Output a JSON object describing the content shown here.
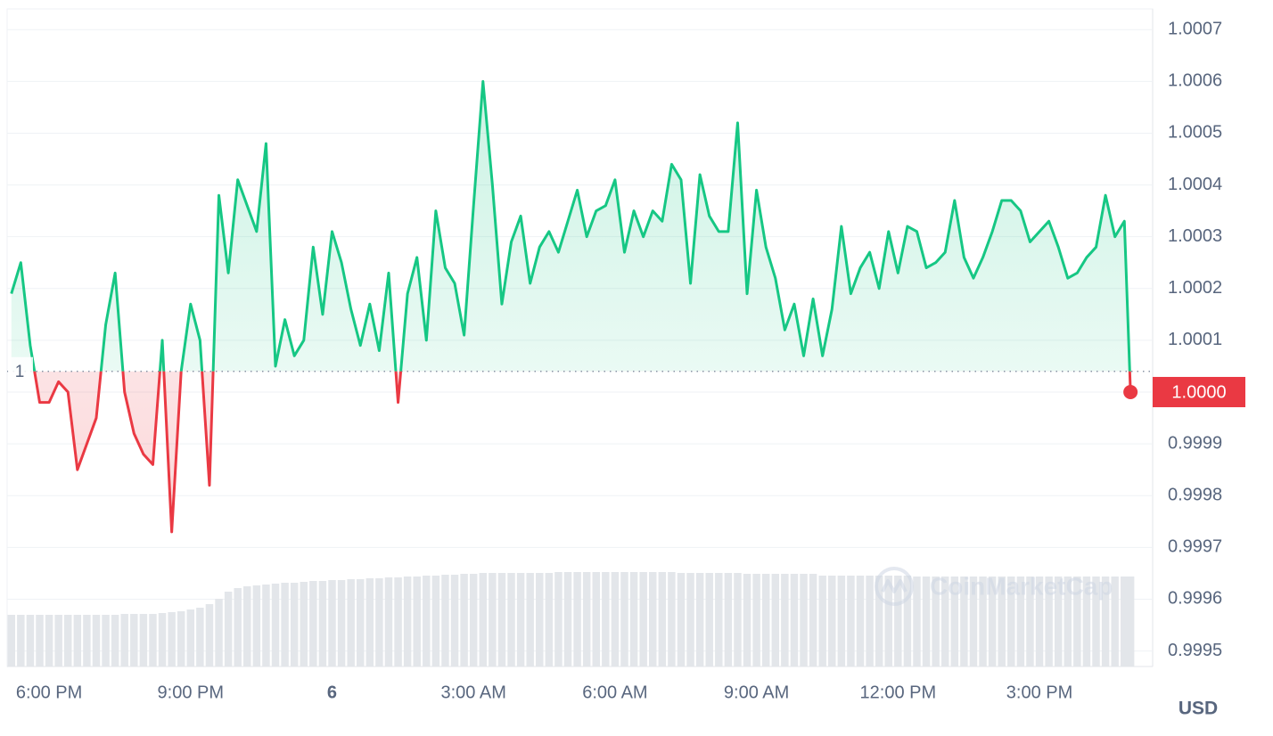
{
  "chart_data": {
    "type": "line",
    "x": [
      17.2,
      17.4,
      17.6,
      17.8,
      18,
      18.2,
      18.4,
      18.6,
      18.8,
      19,
      19.2,
      19.4,
      19.6,
      19.8,
      20,
      20.2,
      20.4,
      20.6,
      20.8,
      21,
      21.2,
      21.4,
      21.6,
      21.8,
      22,
      22.2,
      22.4,
      22.6,
      22.8,
      23,
      23.2,
      23.4,
      23.6,
      23.8,
      24,
      24.2,
      24.4,
      24.6,
      24.8,
      25,
      25.2,
      25.4,
      25.6,
      25.8,
      26,
      26.2,
      26.4,
      26.6,
      26.8,
      27,
      27.2,
      27.4,
      27.6,
      27.8,
      28,
      28.2,
      28.4,
      28.6,
      28.8,
      29,
      29.2,
      29.4,
      29.6,
      29.8,
      30,
      30.2,
      30.4,
      30.6,
      30.8,
      31,
      31.2,
      31.4,
      31.6,
      31.8,
      32,
      32.2,
      32.4,
      32.6,
      32.8,
      33,
      33.2,
      33.4,
      33.6,
      33.8,
      34,
      34.2,
      34.4,
      34.6,
      34.8,
      35,
      35.2,
      35.4,
      35.6,
      35.8,
      36,
      36.2,
      36.4,
      36.6,
      36.8,
      37,
      37.2,
      37.4,
      37.6,
      37.8,
      38,
      38.2,
      38.4,
      38.6,
      38.8,
      39,
      39.2,
      39.4,
      39.6,
      39.8,
      40,
      40.2,
      40.4,
      40.6,
      40.8,
      40.93
    ],
    "series": [
      {
        "up_color": "#16c784",
        "down_color": "#ea3943",
        "values": [
          1.00019,
          1.00025,
          1.00009,
          0.99998,
          0.99998,
          1.00002,
          1,
          0.99985,
          0.9999,
          0.99995,
          1.00013,
          1.00023,
          1,
          0.99992,
          0.99988,
          0.99986,
          1.0001,
          0.99973,
          1.00004,
          1.00017,
          1.0001,
          0.99982,
          1.00038,
          1.00023,
          1.00041,
          1.00036,
          1.00031,
          1.00048,
          1.00005,
          1.00014,
          1.00007,
          1.0001,
          1.00028,
          1.00015,
          1.00031,
          1.00025,
          1.00016,
          1.00009,
          1.00017,
          1.00008,
          1.00023,
          0.99998,
          1.00019,
          1.00026,
          1.0001,
          1.00035,
          1.00024,
          1.00021,
          1.00011,
          1.00036,
          1.0006,
          1.0004,
          1.00017,
          1.00029,
          1.00034,
          1.00021,
          1.00028,
          1.00031,
          1.00027,
          1.00033,
          1.00039,
          1.0003,
          1.00035,
          1.00036,
          1.00041,
          1.00027,
          1.00035,
          1.0003,
          1.00035,
          1.00033,
          1.00044,
          1.00041,
          1.00021,
          1.00042,
          1.00034,
          1.00031,
          1.00031,
          1.00052,
          1.00019,
          1.00039,
          1.00028,
          1.00022,
          1.00012,
          1.00017,
          1.00007,
          1.00018,
          1.00007,
          1.00016,
          1.00032,
          1.00019,
          1.00024,
          1.00027,
          1.0002,
          1.00031,
          1.00023,
          1.00032,
          1.00031,
          1.00024,
          1.00025,
          1.00027,
          1.00037,
          1.00026,
          1.00022,
          1.00026,
          1.00031,
          1.00037,
          1.00037,
          1.00035,
          1.00029,
          1.00031,
          1.00033,
          1.00028,
          1.00022,
          1.00023,
          1.00026,
          1.00028,
          1.00038,
          1.0003,
          1.00033,
          1
        ]
      }
    ],
    "baseline": {
      "value": 1.00004,
      "label": "1"
    },
    "price_label": {
      "value": 1,
      "label": "1.0000",
      "color": "#ea3943"
    },
    "volume": {
      "color": "#e3e6ea",
      "lim": [
        0,
        150
      ],
      "values": [
        58,
        58,
        58,
        58,
        58,
        58,
        58,
        58,
        58,
        58,
        58,
        58,
        59,
        59,
        59,
        59,
        60,
        61,
        62,
        64,
        66,
        70,
        76,
        84,
        88,
        90,
        91,
        92,
        93,
        94,
        94,
        95,
        96,
        96,
        97,
        97,
        98,
        98,
        99,
        99,
        100,
        100,
        101,
        101,
        102,
        102,
        103,
        103,
        104,
        104,
        105,
        105,
        105,
        105,
        105,
        105,
        105,
        105,
        106,
        106,
        106,
        106,
        106,
        106,
        106,
        106,
        106,
        106,
        106,
        106,
        106,
        105,
        105,
        105,
        105,
        105,
        105,
        105,
        104,
        104,
        104,
        104,
        104,
        104,
        104,
        104,
        102,
        102,
        102,
        102,
        102,
        102,
        102,
        102,
        102,
        102,
        101,
        101,
        101,
        101,
        101,
        101,
        101,
        101,
        101,
        101,
        101,
        101,
        101,
        101,
        101,
        101,
        101,
        101,
        101,
        101,
        101,
        101,
        101,
        101
      ]
    },
    "xlim": [
      17.11,
      41.4
    ],
    "ylim": [
      0.99947,
      1.00074
    ],
    "xticks": [
      {
        "value": 18,
        "label": "6:00 PM"
      },
      {
        "value": 21,
        "label": "9:00 PM"
      },
      {
        "value": 24,
        "label": "6",
        "bold": true
      },
      {
        "value": 27,
        "label": "3:00 AM"
      },
      {
        "value": 30,
        "label": "6:00 AM"
      },
      {
        "value": 33,
        "label": "9:00 AM"
      },
      {
        "value": 36,
        "label": "12:00 PM"
      },
      {
        "value": 39,
        "label": "3:00 PM"
      }
    ],
    "yticks": [
      1.0007,
      1.0006,
      1.0005,
      1.0004,
      1.0003,
      1.0002,
      1.0001,
      {
        "value": 1,
        "label": "1.0000"
      },
      0.9999,
      0.9998,
      0.9997,
      0.9996,
      0.9995
    ],
    "grid": true,
    "currency": "USD",
    "watermark": "CoinMarketCap"
  }
}
